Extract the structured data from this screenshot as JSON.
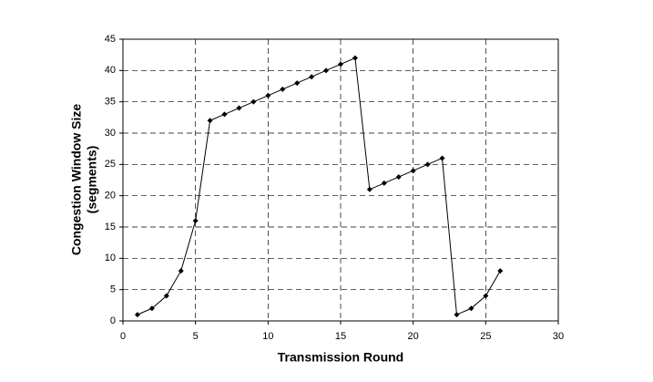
{
  "chart_data": {
    "type": "line",
    "xlabel": "Transmission Round",
    "ylabel": [
      "Congestion Window Size",
      "(segments)"
    ],
    "x": [
      1,
      2,
      3,
      4,
      5,
      6,
      7,
      8,
      9,
      10,
      11,
      12,
      13,
      14,
      15,
      16,
      17,
      18,
      19,
      20,
      21,
      22,
      23,
      24,
      25,
      26
    ],
    "series": [
      {
        "color": "#000000",
        "values": [
          1,
          2,
          4,
          8,
          16,
          32,
          33,
          34,
          35,
          36,
          37,
          38,
          39,
          40,
          41,
          42,
          21,
          22,
          23,
          24,
          25,
          26,
          1,
          2,
          4,
          8
        ]
      }
    ],
    "xlim": [
      0,
      30
    ],
    "xticks": [
      0,
      5,
      10,
      15,
      20,
      25,
      30
    ],
    "ylim": [
      0,
      45
    ],
    "yticks": [
      0,
      5,
      10,
      15,
      20,
      25,
      30,
      35,
      40,
      45
    ],
    "grid": true
  }
}
